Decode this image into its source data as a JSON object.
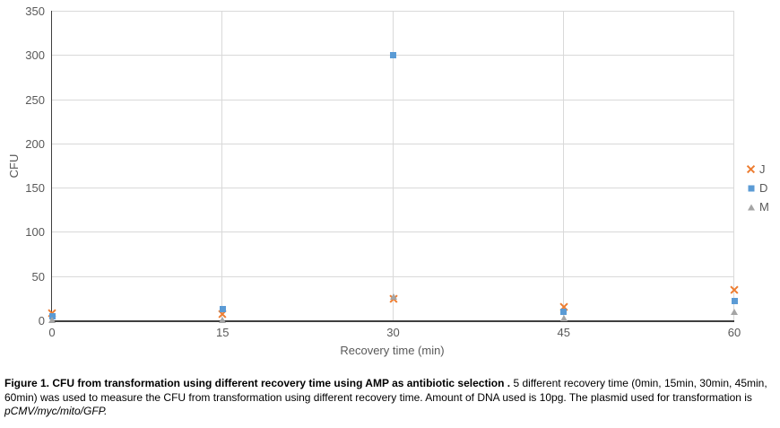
{
  "chart_data": {
    "type": "scatter",
    "x": [
      0,
      15,
      30,
      45,
      60
    ],
    "series": [
      {
        "name": "J",
        "marker": "x-cross",
        "color": "#ED7D31",
        "values": [
          8,
          7,
          24,
          15,
          34
        ]
      },
      {
        "name": "D",
        "marker": "square",
        "color": "#5B9BD5",
        "values": [
          5,
          13,
          300,
          10,
          22
        ]
      },
      {
        "name": "M",
        "marker": "triangle",
        "color": "#A5A5A5",
        "values": [
          1,
          1,
          27,
          3,
          10
        ]
      }
    ],
    "title": "",
    "xlabel": "Recovery time (min)",
    "ylabel": "CFU",
    "xlim": [
      0,
      60
    ],
    "ylim": [
      0,
      350
    ],
    "x_ticks": [
      0,
      15,
      30,
      45,
      60
    ],
    "y_ticks": [
      0,
      50,
      100,
      150,
      200,
      250,
      300,
      350
    ],
    "grid": true,
    "legend_position": "right"
  },
  "colors": {
    "series_j": "#ED7D31",
    "series_d": "#5B9BD5",
    "series_m": "#A5A5A5",
    "gridline": "#D9D9D9",
    "axis_line": "#3F3F3F",
    "tick_text": "#595959",
    "caption_text": "#000000",
    "background": "#FFFFFF"
  },
  "caption": {
    "bold": "Figure 1. CFU from transformation using different recovery time using AMP as antibiotic selection .",
    "normal": " 5 different recovery time (0min, 15min, 30min, 45min, 60min) was used to measure the CFU from transformation using different recovery time. Amount of DNA used is 10pg. The plasmid used for transformation is ",
    "italic": "pCMV/myc/mito/GFP."
  }
}
